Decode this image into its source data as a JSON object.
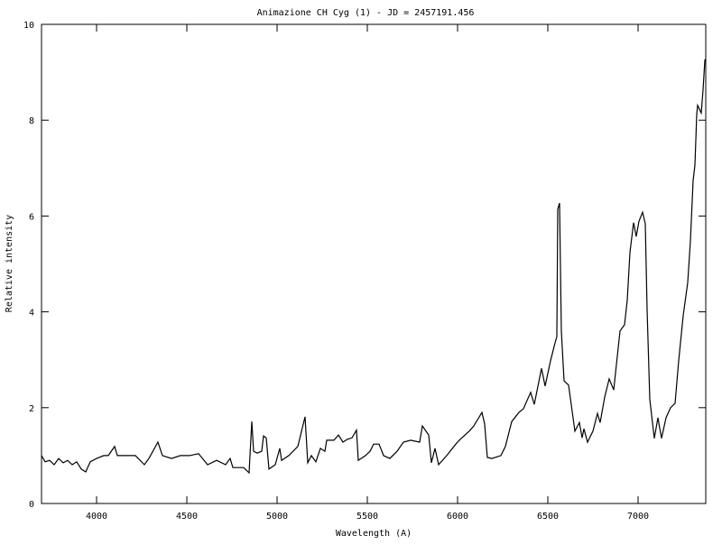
{
  "chart_data": {
    "type": "line",
    "title": "Animazione CH Cyg (1) - JD = 2457191.456",
    "xlabel": "Wavelength (A)",
    "ylabel": "Relative intensity",
    "xlim": [
      3695,
      7375
    ],
    "ylim": [
      0,
      10
    ],
    "xticks": [
      4000,
      4500,
      5000,
      5500,
      6000,
      6500,
      7000
    ],
    "yticks": [
      0,
      2,
      4,
      6,
      8,
      10
    ],
    "grid": false,
    "line_color": "#000000",
    "series": [
      {
        "x": [
          3695,
          3715,
          3740,
          3765,
          3790,
          3815,
          3840,
          3865,
          3890,
          3915,
          3940,
          3965,
          4000,
          4040,
          4065,
          4100,
          4115,
          4165,
          4215,
          4265,
          4290,
          4340,
          4365,
          4415,
          4465,
          4515,
          4565,
          4615,
          4665,
          4715,
          4740,
          4755,
          4815,
          4845,
          4850,
          4860,
          4870,
          4890,
          4915,
          4925,
          4940,
          4955,
          4990,
          5015,
          5025,
          5065,
          5115,
          5155,
          5170,
          5190,
          5215,
          5240,
          5265,
          5275,
          5315,
          5340,
          5365,
          5390,
          5415,
          5440,
          5450,
          5490,
          5515,
          5535,
          5565,
          5590,
          5625,
          5665,
          5700,
          5740,
          5790,
          5805,
          5840,
          5855,
          5875,
          5895,
          5940,
          5990,
          6015,
          6065,
          6090,
          6135,
          6150,
          6165,
          6190,
          6240,
          6265,
          6300,
          6340,
          6365,
          6405,
          6425,
          6465,
          6485,
          6515,
          6540,
          6550,
          6555,
          6565,
          6575,
          6590,
          6615,
          6650,
          6675,
          6690,
          6700,
          6720,
          6750,
          6775,
          6790,
          6815,
          6840,
          6865,
          6900,
          6925,
          6940,
          6955,
          6975,
          6990,
          7005,
          7025,
          7040,
          7050,
          7065,
          7090,
          7110,
          7130,
          7155,
          7180,
          7205,
          7225,
          7250,
          7275,
          7290,
          7305,
          7315,
          7325,
          7330,
          7350,
          7360,
          7370,
          7375
        ],
        "y": [
          1.0,
          0.87,
          0.9,
          0.81,
          0.94,
          0.85,
          0.9,
          0.81,
          0.87,
          0.72,
          0.66,
          0.87,
          0.94,
          1.0,
          1.0,
          1.19,
          1.0,
          1.0,
          1.0,
          0.81,
          0.94,
          1.28,
          1.0,
          0.94,
          1.0,
          1.0,
          1.04,
          0.81,
          0.9,
          0.81,
          0.94,
          0.75,
          0.75,
          0.64,
          1.0,
          1.71,
          1.09,
          1.05,
          1.09,
          1.41,
          1.37,
          0.72,
          0.81,
          1.15,
          0.9,
          1.0,
          1.19,
          1.81,
          0.85,
          1.0,
          0.87,
          1.15,
          1.09,
          1.32,
          1.32,
          1.43,
          1.28,
          1.34,
          1.37,
          1.53,
          0.9,
          1.0,
          1.09,
          1.24,
          1.24,
          1.0,
          0.94,
          1.09,
          1.28,
          1.32,
          1.28,
          1.62,
          1.43,
          0.85,
          1.15,
          0.81,
          1.0,
          1.24,
          1.34,
          1.51,
          1.62,
          1.9,
          1.66,
          0.96,
          0.94,
          1.0,
          1.19,
          1.71,
          1.9,
          1.98,
          2.32,
          2.07,
          2.82,
          2.45,
          2.98,
          3.35,
          3.48,
          6.14,
          6.27,
          3.6,
          2.56,
          2.47,
          1.51,
          1.69,
          1.37,
          1.56,
          1.28,
          1.51,
          1.88,
          1.69,
          2.22,
          2.6,
          2.37,
          3.6,
          3.73,
          4.24,
          5.24,
          5.86,
          5.57,
          5.89,
          6.08,
          5.84,
          4.05,
          2.17,
          1.36,
          1.79,
          1.36,
          1.79,
          2.0,
          2.09,
          2.98,
          3.92,
          4.61,
          5.48,
          6.74,
          7.06,
          8.12,
          8.31,
          8.15,
          8.63,
          9.25,
          9.28
        ]
      }
    ]
  }
}
